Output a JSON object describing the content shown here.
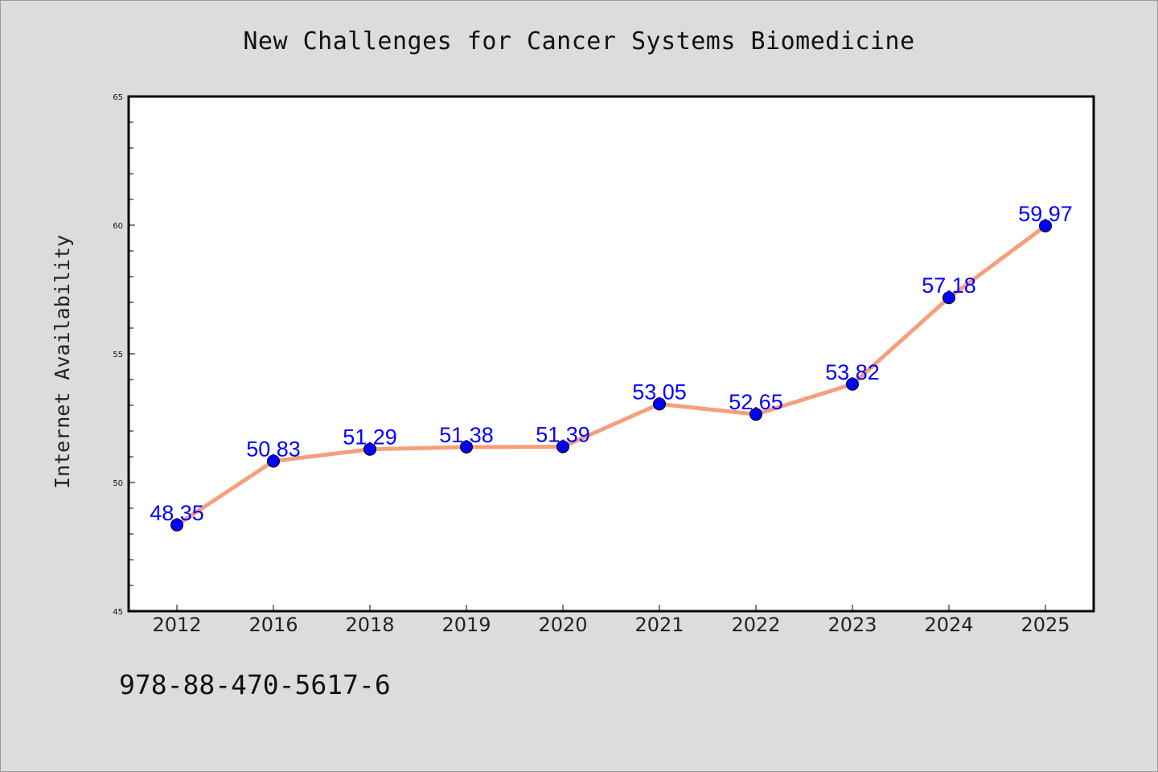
{
  "title": "New Challenges for Cancer Systems Biomedicine",
  "footer_code": "978-88-470-5617-6",
  "chart_data": {
    "type": "line",
    "categories": [
      "2012",
      "2016",
      "2018",
      "2019",
      "2020",
      "2021",
      "2022",
      "2023",
      "2024",
      "2025"
    ],
    "series": [
      {
        "values": [
          48.35,
          50.83,
          51.29,
          51.38,
          51.39,
          53.05,
          52.65,
          53.82,
          57.18,
          59.97
        ],
        "labels": [
          "48.35",
          "50.83",
          "51.29",
          "51.38",
          "51.39",
          "53.05",
          "52.65",
          "53.82",
          "57.18",
          "59.97"
        ],
        "line_color": "#f4a07d",
        "marker_color": "#0000ff"
      }
    ],
    "title": "New Challenges for Cancer Systems Biomedicine",
    "xlabel": "",
    "ylabel": "Internet Availability",
    "ylim": [
      45,
      65
    ],
    "yticks": [
      "45",
      "50",
      "55",
      "60",
      "65"
    ],
    "grid": false,
    "legend": false
  }
}
